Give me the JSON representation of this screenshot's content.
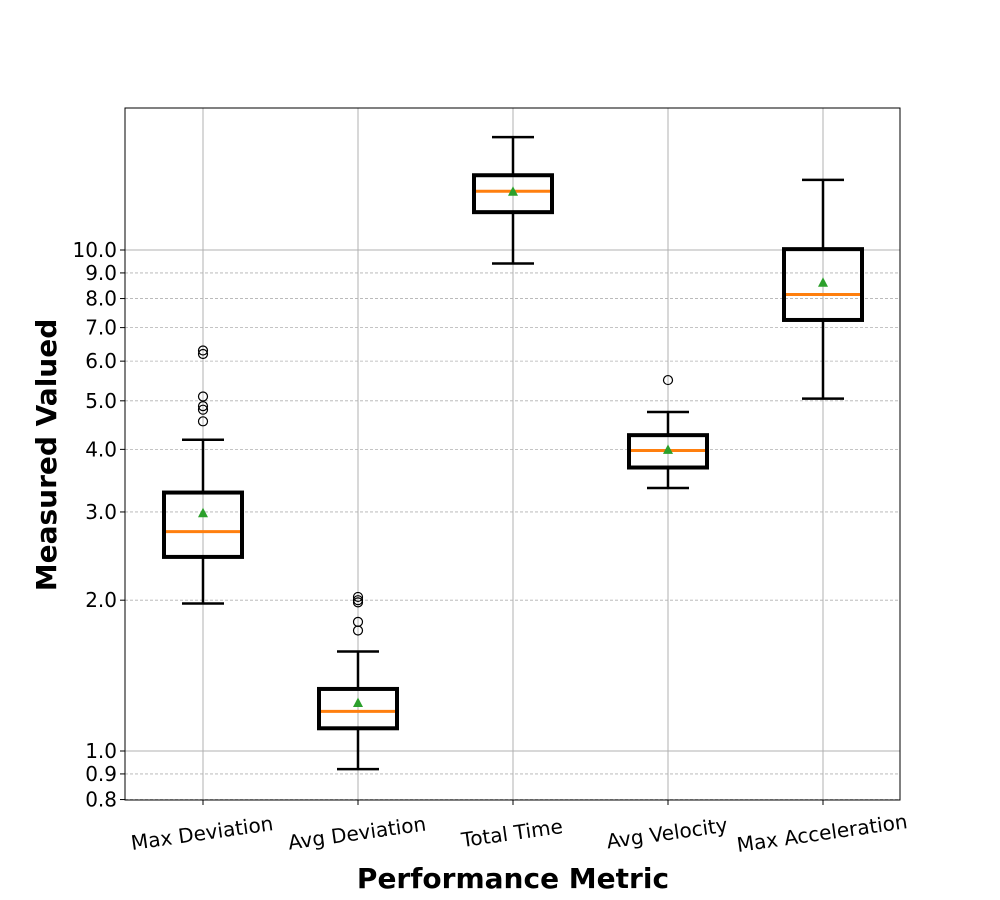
{
  "chart_data": {
    "type": "boxplot",
    "title": "",
    "xlabel": "Performance Metric",
    "ylabel": "Measured Valued",
    "yscale": "log",
    "ylim": [
      0.79,
      25
    ],
    "grid": true,
    "categories": [
      "Max Deviation",
      "Avg Deviation",
      "Total Time",
      "Avg Velocity",
      "Max Acceleration"
    ],
    "yticks": [
      {
        "value": 0.8,
        "label": "0.8",
        "major": false
      },
      {
        "value": 0.9,
        "label": "0.9",
        "major": false
      },
      {
        "value": 1.0,
        "label": "1.0",
        "major": true
      },
      {
        "value": 2.0,
        "label": "2.0",
        "major": false
      },
      {
        "value": 3.0,
        "label": "3.0",
        "major": false
      },
      {
        "value": 4.0,
        "label": "4.0",
        "major": false
      },
      {
        "value": 5.0,
        "label": "5.0",
        "major": false
      },
      {
        "value": 6.0,
        "label": "6.0",
        "major": false
      },
      {
        "value": 7.0,
        "label": "7.0",
        "major": false
      },
      {
        "value": 8.0,
        "label": "8.0",
        "major": false
      },
      {
        "value": 9.0,
        "label": "9.0",
        "major": false
      },
      {
        "value": 10.0,
        "label": "10.0",
        "major": true
      }
    ],
    "boxes": [
      {
        "category": "Max Deviation",
        "whisker_low": 1.97,
        "q1": 2.44,
        "median": 2.74,
        "q3": 3.28,
        "whisker_high": 4.18,
        "mean": 2.99,
        "outliers": [
          4.55,
          4.8,
          4.88,
          5.1,
          6.2,
          6.3
        ]
      },
      {
        "category": "Avg Deviation",
        "whisker_low": 0.92,
        "q1": 1.11,
        "median": 1.2,
        "q3": 1.33,
        "whisker_high": 1.58,
        "mean": 1.25,
        "outliers": [
          1.74,
          1.81,
          1.98,
          2.0,
          2.03
        ]
      },
      {
        "category": "Total Time",
        "whisker_low": 9.4,
        "q1": 11.9,
        "median": 13.1,
        "q3": 14.1,
        "whisker_high": 16.8,
        "mean": 13.1,
        "outliers": []
      },
      {
        "category": "Avg Velocity",
        "whisker_low": 3.35,
        "q1": 3.68,
        "median": 3.98,
        "q3": 4.27,
        "whisker_high": 4.75,
        "mean": 4.0,
        "outliers": [
          5.5
        ]
      },
      {
        "category": "Max Acceleration",
        "whisker_low": 5.05,
        "q1": 7.25,
        "median": 8.15,
        "q3": 10.04,
        "whisker_high": 13.8,
        "mean": 8.62,
        "outliers": []
      }
    ],
    "colors": {
      "box": "#000000",
      "median": "#ff7f0e",
      "mean": "#2ca02c",
      "grid": "#b0b0b0",
      "outlier": "#000000"
    }
  }
}
